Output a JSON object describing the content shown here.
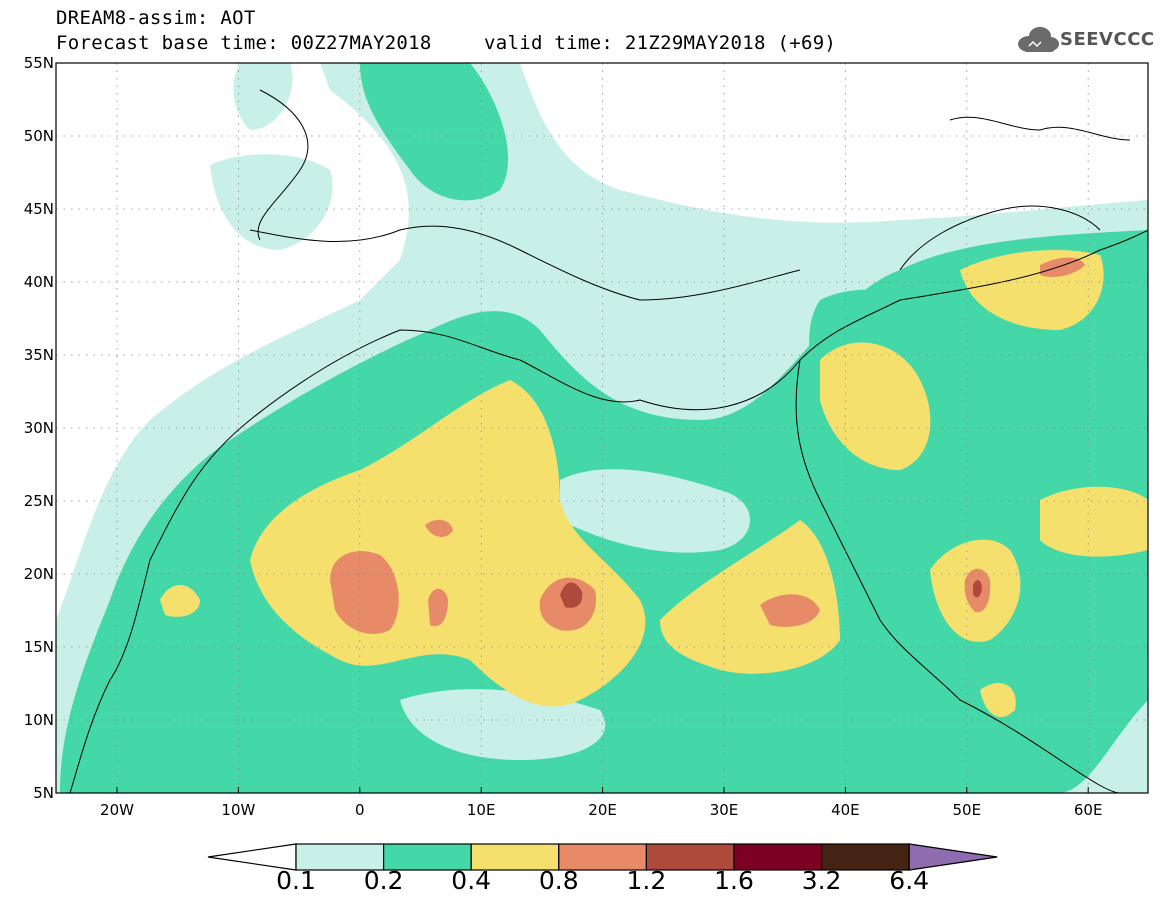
{
  "header": {
    "line1": "DREAM8-assim: AOT",
    "line2": "Forecast base time: 00Z27MAY2018",
    "line3": "valid time: 21Z29MAY2018 (+69)"
  },
  "logo": {
    "text": "SEEVCCC",
    "icon": "cloud-icon"
  },
  "map": {
    "lat_labels": [
      "55N",
      "50N",
      "45N",
      "40N",
      "35N",
      "30N",
      "25N",
      "20N",
      "15N",
      "10N",
      "5N"
    ],
    "lon_labels": [
      "20W",
      "10W",
      "0",
      "10E",
      "20E",
      "30E",
      "40E",
      "50E",
      "60E"
    ]
  },
  "colorbar": {
    "colors": [
      "#c8f0e8",
      "#44d7a8",
      "#f5e06e",
      "#e68a68",
      "#ae4a3c",
      "#7b0022",
      "#452312",
      "#8f6bb0"
    ],
    "labels": [
      "0.1",
      "0.2",
      "0.4",
      "0.8",
      "1.2",
      "1.6",
      "3.2",
      "6.4"
    ]
  }
}
